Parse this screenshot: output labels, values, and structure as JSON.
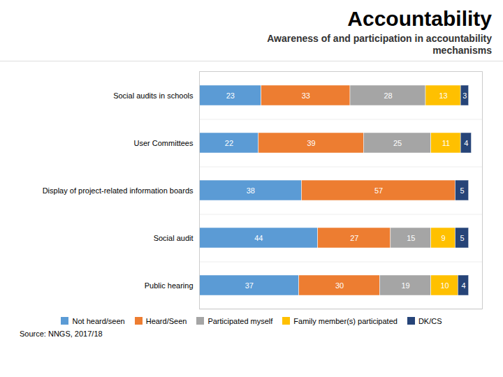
{
  "chart_data": {
    "type": "bar",
    "orientation": "horizontal",
    "stacked": true,
    "title": "Accountability",
    "subtitle": "Awareness of and participation in accountability\nmechanisms",
    "annotations": [
      "Source: NNGS, 2017/18"
    ],
    "categories": [
      "Social audits in schools",
      "User Committees",
      "Display of project-related information boards",
      "Social audit",
      "Public hearing"
    ],
    "series": [
      {
        "name": "Not heard/seen",
        "color": "#5B9BD5",
        "values": [
          23,
          22,
          38,
          44,
          37
        ]
      },
      {
        "name": "Heard/Seen",
        "color": "#ED7D31",
        "values": [
          33,
          39,
          57,
          27,
          30
        ]
      },
      {
        "name": "Participated myself",
        "color": "#A5A5A5",
        "values": [
          28,
          25,
          0,
          15,
          19
        ]
      },
      {
        "name": "Family member(s) participated",
        "color": "#FFC000",
        "values": [
          13,
          11,
          0,
          9,
          10
        ]
      },
      {
        "name": "DK/CS",
        "color": "#264478",
        "values": [
          3,
          4,
          5,
          5,
          4
        ]
      }
    ],
    "xlim": [
      0,
      105
    ],
    "xticks": [],
    "tick_labels": "y",
    "data_labels": true,
    "grid": true,
    "legend": "bottom"
  }
}
